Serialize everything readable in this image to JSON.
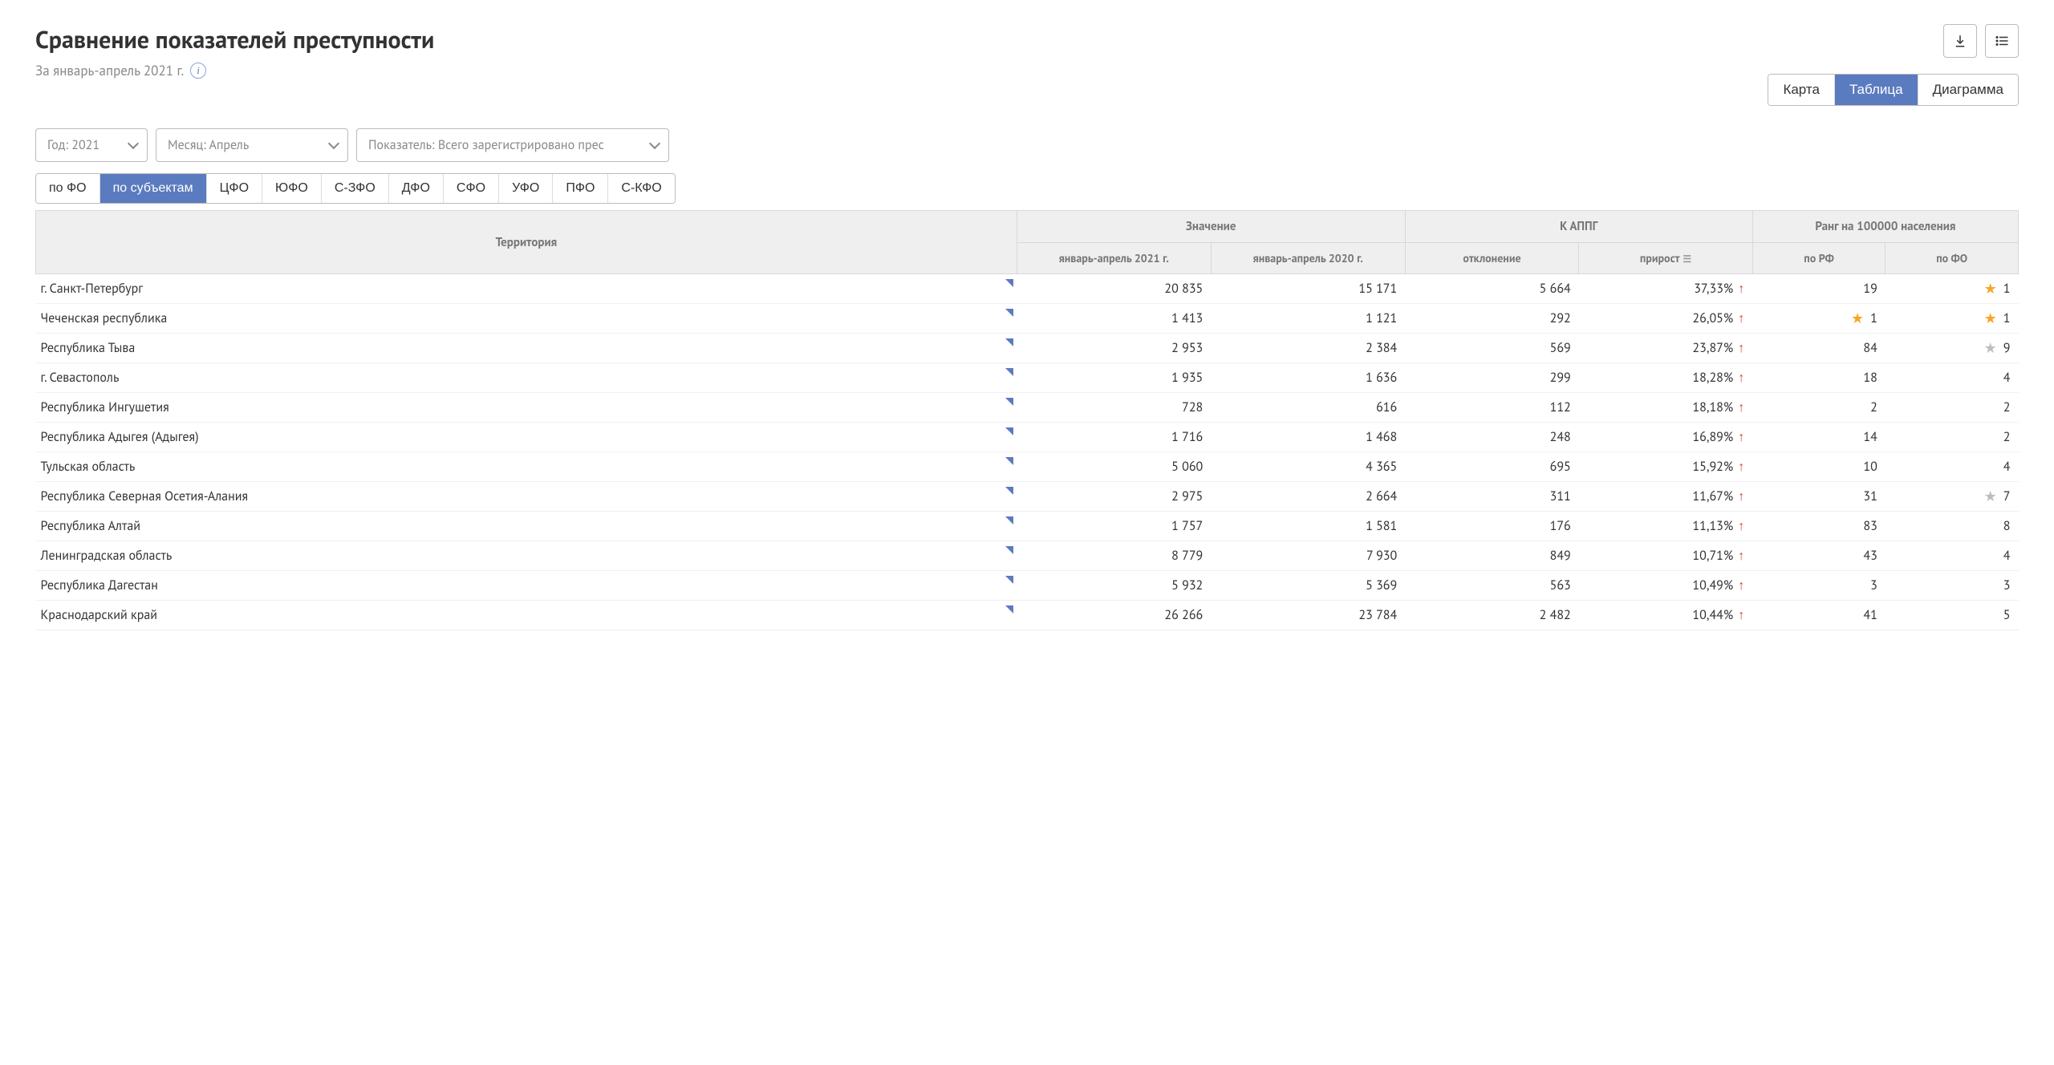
{
  "header": {
    "title": "Сравнение показателей преступности",
    "subtitle": "За январь-апрель 2021 г."
  },
  "view_toggle": {
    "items": [
      "Карта",
      "Таблица",
      "Диаграмма"
    ],
    "active": 1
  },
  "filters": {
    "year": "Год: 2021",
    "month": "Месяц: Апрель",
    "indicator": "Показатель: Всего зарегистрировано прес"
  },
  "region_tabs": {
    "items": [
      "по ФО",
      "по субъектам",
      "ЦФО",
      "ЮФО",
      "С-ЗФО",
      "ДФО",
      "СФО",
      "УФО",
      "ПФО",
      "С-КФО"
    ],
    "active": 1
  },
  "table": {
    "head": {
      "territory": "Территория",
      "value_group": "Значение",
      "value_cur": "январь-апрель 2021 г.",
      "value_prev": "январь-апрель 2020 г.",
      "appg_group": "К АППГ",
      "deviation": "отклонение",
      "growth": "прирост",
      "rank_group": "Ранг на 100000 населения",
      "rank_rf": "по РФ",
      "rank_fo": "по ФО"
    },
    "rows": [
      {
        "territory": "г. Санкт-Петербург",
        "v2021": "20 835",
        "v2020": "15 171",
        "dev": "5 664",
        "growth": "37,33%",
        "rank_rf": "19",
        "rank_rf_star": "",
        "rank_fo": "1",
        "rank_fo_star": "gold"
      },
      {
        "territory": "Чеченская республика",
        "v2021": "1 413",
        "v2020": "1 121",
        "dev": "292",
        "growth": "26,05%",
        "rank_rf": "1",
        "rank_rf_star": "gold",
        "rank_fo": "1",
        "rank_fo_star": "gold"
      },
      {
        "territory": "Республика Тыва",
        "v2021": "2 953",
        "v2020": "2 384",
        "dev": "569",
        "growth": "23,87%",
        "rank_rf": "84",
        "rank_rf_star": "",
        "rank_fo": "9",
        "rank_fo_star": "gray"
      },
      {
        "territory": "г. Севастополь",
        "v2021": "1 935",
        "v2020": "1 636",
        "dev": "299",
        "growth": "18,28%",
        "rank_rf": "18",
        "rank_rf_star": "",
        "rank_fo": "4",
        "rank_fo_star": ""
      },
      {
        "territory": "Республика Ингушетия",
        "v2021": "728",
        "v2020": "616",
        "dev": "112",
        "growth": "18,18%",
        "rank_rf": "2",
        "rank_rf_star": "",
        "rank_fo": "2",
        "rank_fo_star": ""
      },
      {
        "territory": "Республика Адыгея (Адыгея)",
        "v2021": "1 716",
        "v2020": "1 468",
        "dev": "248",
        "growth": "16,89%",
        "rank_rf": "14",
        "rank_rf_star": "",
        "rank_fo": "2",
        "rank_fo_star": ""
      },
      {
        "territory": "Тульская область",
        "v2021": "5 060",
        "v2020": "4 365",
        "dev": "695",
        "growth": "15,92%",
        "rank_rf": "10",
        "rank_rf_star": "",
        "rank_fo": "4",
        "rank_fo_star": ""
      },
      {
        "territory": "Республика Северная Осетия-Алания",
        "v2021": "2 975",
        "v2020": "2 664",
        "dev": "311",
        "growth": "11,67%",
        "rank_rf": "31",
        "rank_rf_star": "",
        "rank_fo": "7",
        "rank_fo_star": "gray"
      },
      {
        "territory": "Республика Алтай",
        "v2021": "1 757",
        "v2020": "1 581",
        "dev": "176",
        "growth": "11,13%",
        "rank_rf": "83",
        "rank_rf_star": "",
        "rank_fo": "8",
        "rank_fo_star": ""
      },
      {
        "territory": "Ленинградская область",
        "v2021": "8 779",
        "v2020": "7 930",
        "dev": "849",
        "growth": "10,71%",
        "rank_rf": "43",
        "rank_rf_star": "",
        "rank_fo": "4",
        "rank_fo_star": ""
      },
      {
        "territory": "Республика Дагестан",
        "v2021": "5 932",
        "v2020": "5 369",
        "dev": "563",
        "growth": "10,49%",
        "rank_rf": "3",
        "rank_rf_star": "",
        "rank_fo": "3",
        "rank_fo_star": ""
      },
      {
        "territory": "Краснодарский край",
        "v2021": "26 266",
        "v2020": "23 784",
        "dev": "2 482",
        "growth": "10,44%",
        "rank_rf": "41",
        "rank_rf_star": "",
        "rank_fo": "5",
        "rank_fo_star": ""
      }
    ]
  }
}
